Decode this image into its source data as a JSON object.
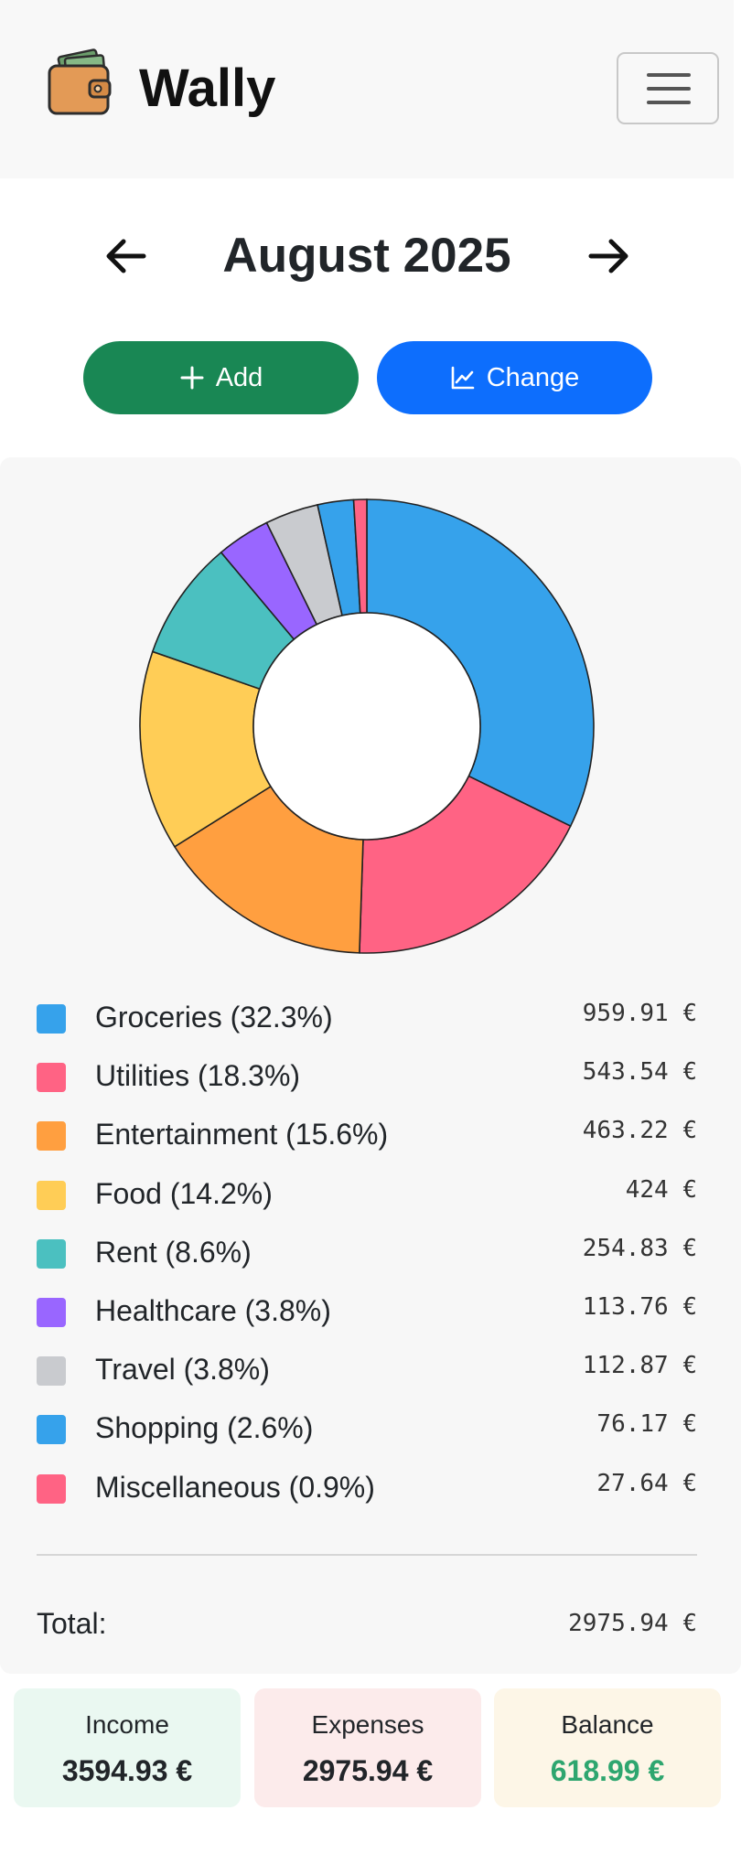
{
  "app": {
    "name": "Wally",
    "logo_icon": "wallet-icon",
    "menu_icon": "hamburger-menu-icon"
  },
  "month_nav": {
    "title": "August 2025",
    "prev_icon": "arrow-left-icon",
    "next_icon": "arrow-right-icon"
  },
  "actions": {
    "add_label": "Add",
    "add_icon": "plus-icon",
    "change_label": "Change",
    "change_icon": "line-chart-icon",
    "add_color": "#198754",
    "change_color": "#0d6efd"
  },
  "chart_data": {
    "type": "pie",
    "donut": true,
    "categories": [
      "Groceries",
      "Utilities",
      "Entertainment",
      "Food",
      "Rent",
      "Healthcare",
      "Travel",
      "Shopping",
      "Miscellaneous"
    ],
    "values": [
      959.91,
      543.54,
      463.22,
      424,
      254.83,
      113.76,
      112.87,
      76.17,
      27.64
    ],
    "colors": [
      "#36a2eb",
      "#ff6384",
      "#ff9f40",
      "#ffcd56",
      "#4bc0c0",
      "#9966ff",
      "#c9cbcf",
      "#36a2eb",
      "#ff6384"
    ]
  },
  "legend": [
    {
      "label": "Groceries (32.3%)",
      "value": "959.91 €",
      "color": "#36a2eb"
    },
    {
      "label": "Utilities (18.3%)",
      "value": "543.54 €",
      "color": "#ff6384"
    },
    {
      "label": "Entertainment (15.6%)",
      "value": "463.22 €",
      "color": "#ff9f40"
    },
    {
      "label": "Food (14.2%)",
      "value": "424 €",
      "color": "#ffcd56"
    },
    {
      "label": "Rent (8.6%)",
      "value": "254.83 €",
      "color": "#4bc0c0"
    },
    {
      "label": "Healthcare (3.8%)",
      "value": "113.76 €",
      "color": "#9966ff"
    },
    {
      "label": "Travel (3.8%)",
      "value": "112.87 €",
      "color": "#c9cbcf"
    },
    {
      "label": "Shopping (2.6%)",
      "value": "76.17 €",
      "color": "#36a2eb"
    },
    {
      "label": "Miscellaneous (0.9%)",
      "value": "27.64 €",
      "color": "#ff6384"
    }
  ],
  "total": {
    "label": "Total:",
    "value": "2975.94 €"
  },
  "summary": {
    "income": {
      "label": "Income",
      "value": "3594.93 €",
      "color": "#212529"
    },
    "expenses": {
      "label": "Expenses",
      "value": "2975.94 €",
      "color": "#212529"
    },
    "balance": {
      "label": "Balance",
      "value": "618.99 €",
      "color": "#2ea66f"
    }
  }
}
